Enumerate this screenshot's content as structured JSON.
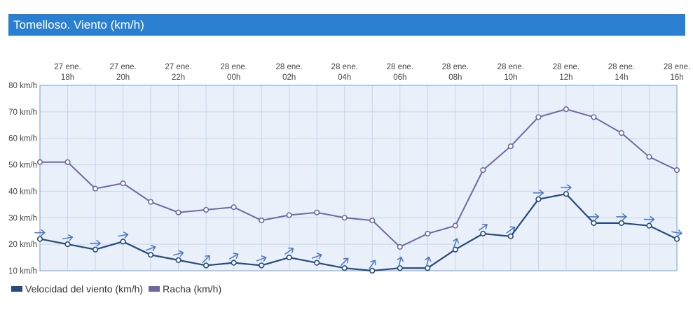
{
  "title": "Tomelloso. Viento (km/h)",
  "colors": {
    "title_bg": "#2b7fd0",
    "plot_bg": "#e9f0fa",
    "axis": "#9cbbe2",
    "grid": "#c9d5e6",
    "wind": "#274a7d",
    "gust": "#7069a1",
    "arrow": "#4a76c4"
  },
  "chart_data": {
    "type": "line",
    "title": "Tomelloso. Viento (km/h)",
    "ylabel": "km/h",
    "ylim": [
      10,
      80
    ],
    "yticks": [
      10,
      20,
      30,
      40,
      50,
      60,
      70,
      80
    ],
    "ytick_labels": [
      "10 km/h",
      "20 km/h",
      "30 km/h",
      "40 km/h",
      "50 km/h",
      "60 km/h",
      "70 km/h",
      "80 km/h"
    ],
    "x_hours": [
      "17h",
      "18h",
      "19h",
      "20h",
      "21h",
      "22h",
      "23h",
      "00h",
      "01h",
      "02h",
      "03h",
      "04h",
      "05h",
      "06h",
      "07h",
      "08h",
      "09h",
      "10h",
      "11h",
      "12h",
      "13h",
      "14h",
      "15h",
      "16h"
    ],
    "x_tick_labels": [
      {
        "i": 1,
        "date": "27 ene.",
        "hour": "18h"
      },
      {
        "i": 3,
        "date": "27 ene.",
        "hour": "20h"
      },
      {
        "i": 5,
        "date": "27 ene.",
        "hour": "22h"
      },
      {
        "i": 7,
        "date": "28 ene.",
        "hour": "00h"
      },
      {
        "i": 9,
        "date": "28 ene.",
        "hour": "02h"
      },
      {
        "i": 11,
        "date": "28 ene.",
        "hour": "04h"
      },
      {
        "i": 13,
        "date": "28 ene.",
        "hour": "06h"
      },
      {
        "i": 15,
        "date": "28 ene.",
        "hour": "08h"
      },
      {
        "i": 17,
        "date": "28 ene.",
        "hour": "10h"
      },
      {
        "i": 19,
        "date": "28 ene.",
        "hour": "12h"
      },
      {
        "i": 21,
        "date": "28 ene.",
        "hour": "14h"
      },
      {
        "i": 23,
        "date": "28 ene.",
        "hour": "16h"
      }
    ],
    "series": [
      {
        "name": "Velocidad del viento (km/h)",
        "color": "#274a7d",
        "values": [
          22,
          20,
          18,
          21,
          16,
          14,
          12,
          13,
          12,
          15,
          13,
          11,
          10,
          11,
          11,
          18,
          24,
          23,
          37,
          39,
          28,
          28,
          27,
          22
        ],
        "direction_deg": [
          0,
          -10,
          0,
          -10,
          -20,
          -15,
          -45,
          -30,
          -20,
          -35,
          -20,
          -45,
          -55,
          -75,
          -75,
          -70,
          -35,
          -35,
          0,
          0,
          0,
          0,
          0,
          10
        ]
      },
      {
        "name": "Racha (km/h)",
        "color": "#7069a1",
        "values": [
          51,
          51,
          41,
          43,
          36,
          32,
          33,
          34,
          29,
          31,
          32,
          30,
          29,
          19,
          24,
          27,
          48,
          57,
          68,
          71,
          68,
          62,
          53,
          48
        ]
      }
    ],
    "legend": [
      "Velocidad del viento (km/h)",
      "Racha (km/h)"
    ],
    "legend_position": "bottom-left"
  }
}
